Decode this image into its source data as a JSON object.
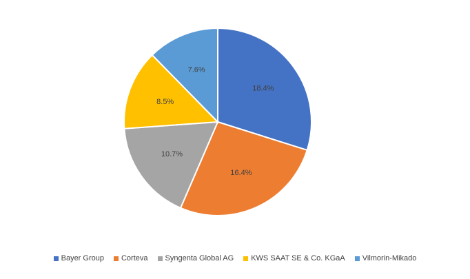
{
  "chart_data": {
    "type": "pie",
    "categories": [
      "Bayer Group",
      "Corteva",
      "Syngenta Global AG",
      "KWS SAAT SE & Co. KGaA",
      "Vilmorin-Mikado"
    ],
    "values": [
      18.4,
      16.4,
      10.7,
      8.5,
      7.6
    ],
    "labels": [
      "18.4%",
      "16.4%",
      "10.7%",
      "8.5%",
      "7.6%"
    ],
    "colors": [
      "#4472C4",
      "#ED7D31",
      "#A5A5A5",
      "#FFC000",
      "#5B9BD5"
    ],
    "start": "12 o'clock",
    "direction": "clockwise",
    "legend_position": "bottom"
  }
}
